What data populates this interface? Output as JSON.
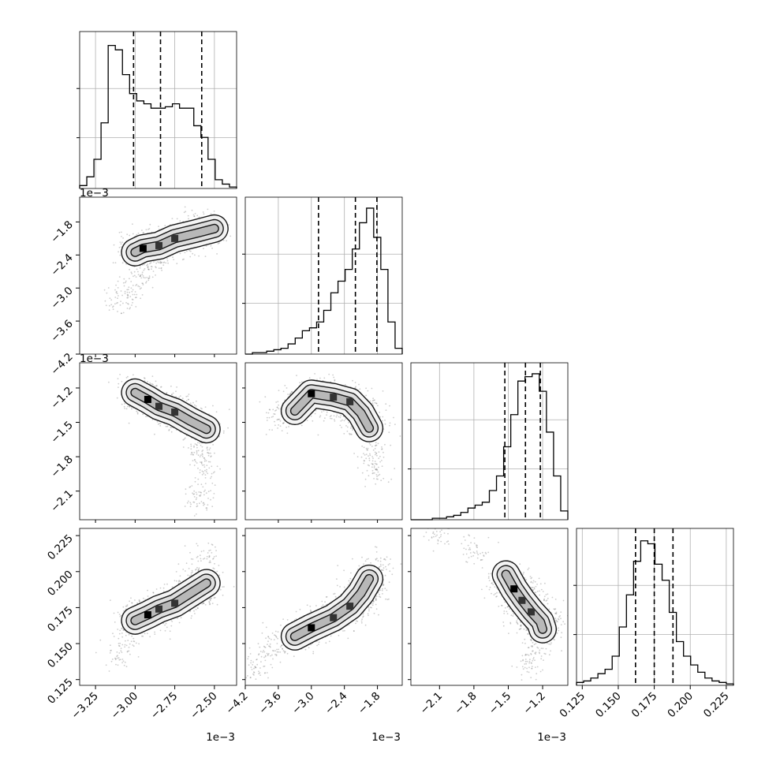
{
  "chart_data": {
    "type": "corner",
    "n_params": 4,
    "params": [
      {
        "range": [
          -3.35,
          -2.36
        ],
        "ticks": [
          -3.25,
          -3.0,
          -2.75,
          -2.5
        ],
        "tick_labels": [
          "−3.25",
          "−3.00",
          "−2.75",
          "−2.50"
        ],
        "offset": "1e−3",
        "quantiles": [
          -3.01,
          -2.84,
          -2.58
        ]
      },
      {
        "range": [
          -4.2,
          -1.35
        ],
        "ticks": [
          -4.2,
          -3.6,
          -3.0,
          -2.4,
          -1.8
        ],
        "tick_labels": [
          "−4.2",
          "−3.6",
          "−3.0",
          "−2.4",
          "−1.8"
        ],
        "offset": "1e−3",
        "quantiles": [
          -2.87,
          -2.2,
          -1.81
        ]
      },
      {
        "range": [
          -2.35,
          -0.98
        ],
        "ticks": [
          -2.1,
          -1.8,
          -1.5,
          -1.2
        ],
        "tick_labels": [
          "−2.1",
          "−1.8",
          "−1.5",
          "−1.2"
        ],
        "offset": "1e−3",
        "quantiles": [
          -1.53,
          -1.35,
          -1.22
        ]
      },
      {
        "range": [
          0.121,
          0.23
        ],
        "ticks": [
          0.125,
          0.15,
          0.175,
          0.2,
          0.225
        ],
        "tick_labels": [
          "0.125",
          "0.150",
          "0.175",
          "0.200",
          "0.225"
        ],
        "offset": "",
        "quantiles": [
          0.162,
          0.175,
          0.188
        ]
      }
    ],
    "histograms": [
      [
        0.02,
        0.08,
        0.2,
        0.45,
        0.98,
        0.95,
        0.78,
        0.65,
        0.6,
        0.58,
        0.55,
        0.55,
        0.56,
        0.58,
        0.55,
        0.55,
        0.43,
        0.35,
        0.2,
        0.06,
        0.03,
        0.01
      ],
      [
        0.0,
        0.01,
        0.01,
        0.02,
        0.03,
        0.04,
        0.07,
        0.11,
        0.16,
        0.18,
        0.22,
        0.3,
        0.42,
        0.5,
        0.58,
        0.72,
        0.9,
        1.0,
        0.8,
        0.58,
        0.22,
        0.04
      ],
      [
        0.0,
        0.0,
        0.0,
        0.01,
        0.01,
        0.02,
        0.03,
        0.05,
        0.08,
        0.1,
        0.12,
        0.2,
        0.3,
        0.5,
        0.72,
        0.95,
        0.98,
        1.0,
        0.88,
        0.6,
        0.3,
        0.06
      ],
      [
        0.02,
        0.03,
        0.05,
        0.08,
        0.11,
        0.2,
        0.4,
        0.62,
        0.85,
        0.99,
        0.97,
        0.83,
        0.72,
        0.5,
        0.3,
        0.2,
        0.14,
        0.09,
        0.05,
        0.03,
        0.02,
        0.01
      ]
    ],
    "densities": [
      {
        "row": 1,
        "col": 0,
        "core": [
          [
            -3.0,
            -2.35
          ],
          [
            -2.95,
            -2.28
          ],
          [
            -2.85,
            -2.23
          ],
          [
            -2.75,
            -2.1
          ],
          [
            -2.62,
            -2.01
          ],
          [
            -2.5,
            -1.92
          ]
        ],
        "halo": [
          [
            -3.1,
            -3.2
          ],
          [
            -3.02,
            -3.05
          ],
          [
            -2.95,
            -2.8
          ],
          [
            -2.9,
            -2.55
          ]
        ]
      },
      {
        "row": 2,
        "col": 0,
        "core": [
          [
            -3.0,
            -1.24
          ],
          [
            -2.92,
            -1.3
          ],
          [
            -2.85,
            -1.36
          ],
          [
            -2.75,
            -1.41
          ],
          [
            -2.65,
            -1.49
          ],
          [
            -2.55,
            -1.56
          ]
        ],
        "halo": [
          [
            -2.6,
            -1.75
          ],
          [
            -2.55,
            -1.9
          ],
          [
            -2.6,
            -2.15
          ]
        ]
      },
      {
        "row": 2,
        "col": 1,
        "core": [
          [
            -3.3,
            -1.4
          ],
          [
            -3.0,
            -1.25
          ],
          [
            -2.6,
            -1.28
          ],
          [
            -2.3,
            -1.32
          ],
          [
            -2.1,
            -1.42
          ],
          [
            -1.95,
            -1.55
          ]
        ],
        "halo": [
          [
            -1.9,
            -1.75
          ],
          [
            -1.85,
            -1.9
          ],
          [
            -3.6,
            -1.48
          ]
        ]
      },
      {
        "row": 3,
        "col": 0,
        "core": [
          [
            -3.0,
            0.166
          ],
          [
            -2.92,
            0.17
          ],
          [
            -2.85,
            0.174
          ],
          [
            -2.75,
            0.178
          ],
          [
            -2.65,
            0.185
          ],
          [
            -2.55,
            0.192
          ]
        ],
        "halo": [
          [
            -3.05,
            0.155
          ],
          [
            -3.1,
            0.14
          ],
          [
            -2.6,
            0.2
          ],
          [
            -2.55,
            0.21
          ]
        ]
      },
      {
        "row": 3,
        "col": 1,
        "core": [
          [
            -3.3,
            0.155
          ],
          [
            -3.0,
            0.161
          ],
          [
            -2.6,
            0.168
          ],
          [
            -2.3,
            0.176
          ],
          [
            -2.1,
            0.185
          ],
          [
            -1.95,
            0.195
          ]
        ],
        "halo": [
          [
            -3.7,
            0.147
          ],
          [
            -4.0,
            0.135
          ],
          [
            -1.8,
            0.205
          ]
        ]
      },
      {
        "row": 3,
        "col": 2,
        "core": [
          [
            -1.52,
            0.198
          ],
          [
            -1.45,
            0.188
          ],
          [
            -1.38,
            0.18
          ],
          [
            -1.3,
            0.172
          ],
          [
            -1.22,
            0.165
          ],
          [
            -1.2,
            0.16
          ]
        ],
        "halo": [
          [
            -1.8,
            0.215
          ],
          [
            -2.1,
            0.225
          ],
          [
            -1.25,
            0.148
          ],
          [
            -1.3,
            0.135
          ]
        ]
      }
    ]
  }
}
